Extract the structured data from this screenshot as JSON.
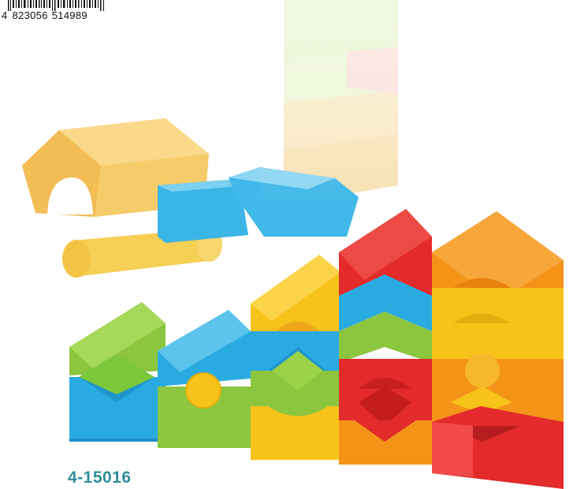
{
  "product": {
    "barcode": {
      "first_digit": "4",
      "group1": "823056",
      "group2": "514989"
    },
    "article_number": "4-15016"
  },
  "colors": {
    "article_text": "#2e8e98",
    "block_green": "#8cc63f",
    "block_blue": "#29abe2",
    "block_yellow": "#f7c21a",
    "block_orange": "#f39419",
    "block_red": "#e32b2b"
  }
}
